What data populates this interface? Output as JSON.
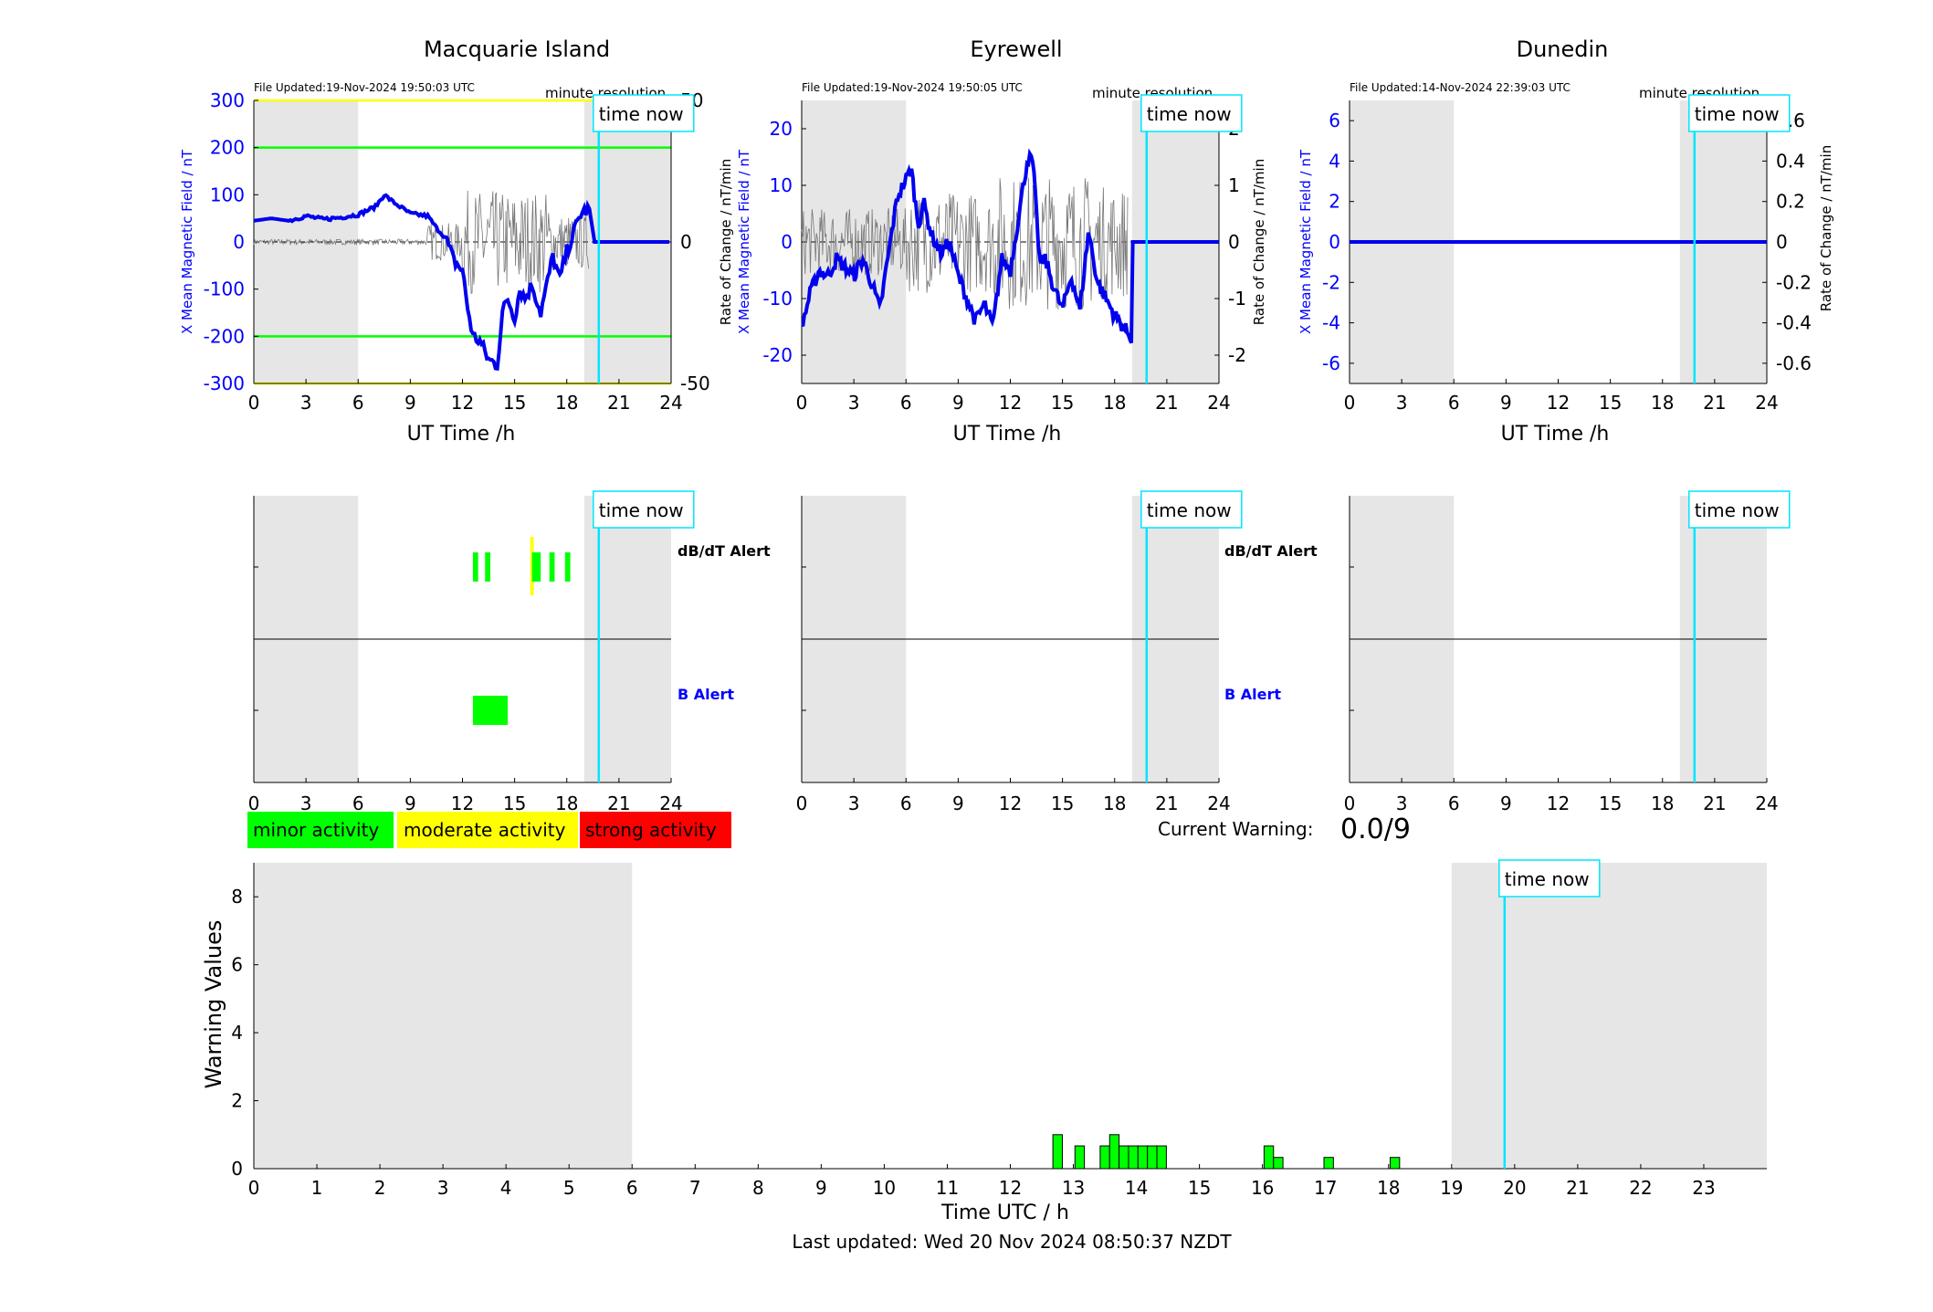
{
  "stations": [
    {
      "title": "Macquarie Island",
      "file_updated": "File Updated:19-Nov-2024 19:50:03 UTC",
      "resolution": "minute resolution",
      "ylabel_left": "X Mean Magnetic Field / nT",
      "ylabel_right": "",
      "yticks_left": [
        -300,
        -200,
        -100,
        0,
        100,
        200,
        300
      ],
      "yticks_right": [
        "-50",
        "0",
        "50"
      ],
      "ylim": [
        -300,
        300
      ]
    },
    {
      "title": "Eyrewell",
      "file_updated": "File Updated:19-Nov-2024 19:50:05 UTC",
      "resolution": "minute resolution",
      "ylabel_left": "Rate of Change / nT/min",
      "ylabel_left2": "X Mean Magnetic Field / nT",
      "ylabel_right": "Rate of Change / nT/min",
      "yticks_left": [
        -20,
        -10,
        0,
        10,
        20
      ],
      "yticks_right": [
        "-2",
        "-1",
        "0",
        "1",
        "2"
      ],
      "ylim": [
        -25,
        25
      ]
    },
    {
      "title": "Dunedin",
      "file_updated": "File Updated:14-Nov-2024 22:39:03 UTC",
      "resolution": "minute resolution",
      "ylabel_left": "X Mean Magnetic Field / nT",
      "ylabel_right": "Rate of Change / nT/min",
      "yticks_left": [
        -6,
        -4,
        -2,
        0,
        2,
        4,
        6
      ],
      "yticks_right": [
        "-0.6",
        "-0.4",
        "-0.2",
        "0",
        "0.2",
        "0.4",
        "0.6"
      ],
      "ylim": [
        -7,
        7
      ]
    }
  ],
  "common": {
    "xlabel": "UT Time /h",
    "xticks": [
      "0",
      "3",
      "6",
      "9",
      "12",
      "15",
      "18",
      "21",
      "24"
    ],
    "time_now_label": "time now",
    "time_now_hour": 19.84,
    "shade_night": [
      [
        0,
        6
      ],
      [
        19,
        24
      ]
    ]
  },
  "alerts": {
    "dbdt_label": "dB/dT Alert",
    "b_label": "B Alert",
    "macquarie_dbdt_segments": [
      {
        "start": 12.6,
        "end": 12.9,
        "level": "minor"
      },
      {
        "start": 13.3,
        "end": 13.6,
        "level": "minor"
      },
      {
        "start": 15.9,
        "end": 16.1,
        "level": "moderate"
      },
      {
        "start": 16.0,
        "end": 16.5,
        "level": "minor"
      },
      {
        "start": 17.0,
        "end": 17.3,
        "level": "minor"
      },
      {
        "start": 17.9,
        "end": 18.2,
        "level": "minor"
      }
    ],
    "macquarie_b_segments": [
      {
        "start": 12.6,
        "end": 14.6,
        "level": "minor"
      }
    ]
  },
  "legend": {
    "minor": "minor activity",
    "moderate": "moderate activity",
    "strong": "strong activity",
    "colors": {
      "minor": "#00ff00",
      "moderate": "#ffff00",
      "strong": "#ff0000"
    }
  },
  "warning": {
    "label": "Current Warning:",
    "value": "0.0/9"
  },
  "chart_data": {
    "type": "bar",
    "xlabel": "Time UTC / h",
    "ylabel": "Warning Values",
    "xlim": [
      0,
      24
    ],
    "ylim": [
      0,
      9
    ],
    "xticks": [
      "0",
      "1",
      "2",
      "3",
      "4",
      "5",
      "6",
      "7",
      "8",
      "9",
      "10",
      "11",
      "12",
      "13",
      "14",
      "15",
      "16",
      "17",
      "18",
      "19",
      "20",
      "21",
      "22",
      "23"
    ],
    "yticks": [
      "0",
      "2",
      "4",
      "6",
      "8"
    ],
    "bars": [
      {
        "x": 12.75,
        "y": 1.0
      },
      {
        "x": 13.1,
        "y": 0.67
      },
      {
        "x": 13.5,
        "y": 0.67
      },
      {
        "x": 13.65,
        "y": 1.0
      },
      {
        "x": 13.8,
        "y": 0.67
      },
      {
        "x": 13.95,
        "y": 0.67
      },
      {
        "x": 14.1,
        "y": 0.67
      },
      {
        "x": 14.25,
        "y": 0.67
      },
      {
        "x": 14.4,
        "y": 0.67
      },
      {
        "x": 16.1,
        "y": 0.67
      },
      {
        "x": 16.25,
        "y": 0.33
      },
      {
        "x": 17.05,
        "y": 0.33
      },
      {
        "x": 18.1,
        "y": 0.33
      }
    ],
    "bar_width": 0.15
  },
  "footer": {
    "last_updated": "Last updated: Wed 20 Nov 2024 08:50:37 NZDT"
  }
}
